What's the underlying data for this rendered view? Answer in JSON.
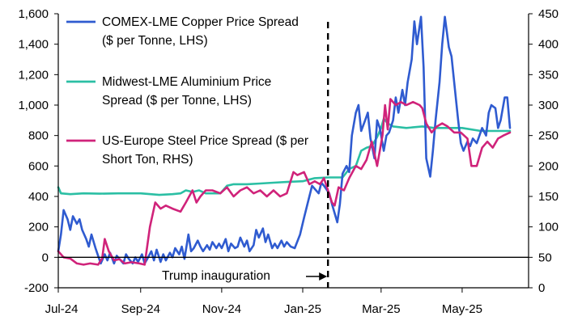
{
  "chart_data": {
    "type": "line",
    "title": "",
    "xlabel": "",
    "x_ticks": [
      "Jul-24",
      "Sep-24",
      "Nov-24",
      "Jan-25",
      "Mar-25",
      "May-25"
    ],
    "x_range": [
      "2024-07-01",
      "2025-06-20"
    ],
    "y_left": {
      "ylim": [
        -200,
        1600
      ],
      "ticks": [
        "-200",
        "0",
        "200",
        "400",
        "600",
        "800",
        "1,000",
        "1,200",
        "1,400",
        "1,600"
      ]
    },
    "y_right": {
      "ylim": [
        0,
        450
      ],
      "ticks": [
        "0",
        "50",
        "100",
        "150",
        "200",
        "250",
        "300",
        "350",
        "400",
        "450"
      ]
    },
    "grid": false,
    "legend_position": "top-left",
    "colors": {
      "copper": "#2f5bd0",
      "aluminium": "#2bbfa4",
      "steel": "#d0237a"
    },
    "annotation": {
      "label": "Trump inauguration",
      "date": "2025-01-20"
    },
    "series": [
      {
        "name": "COMEX-LME Copper Price Spread ($ per Tonne, LHS)",
        "axis": "left",
        "points": [
          [
            "2024-07-01",
            40
          ],
          [
            "2024-07-03",
            150
          ],
          [
            "2024-07-05",
            310
          ],
          [
            "2024-07-08",
            250
          ],
          [
            "2024-07-10",
            180
          ],
          [
            "2024-07-12",
            270
          ],
          [
            "2024-07-15",
            220
          ],
          [
            "2024-07-17",
            250
          ],
          [
            "2024-07-19",
            180
          ],
          [
            "2024-07-22",
            120
          ],
          [
            "2024-07-24",
            70
          ],
          [
            "2024-07-26",
            150
          ],
          [
            "2024-07-29",
            60
          ],
          [
            "2024-07-31",
            10
          ],
          [
            "2024-08-02",
            -40
          ],
          [
            "2024-08-05",
            20
          ],
          [
            "2024-08-07",
            -20
          ],
          [
            "2024-08-09",
            30
          ],
          [
            "2024-08-12",
            -40
          ],
          [
            "2024-08-14",
            10
          ],
          [
            "2024-08-16",
            -10
          ],
          [
            "2024-08-19",
            -40
          ],
          [
            "2024-08-21",
            20
          ],
          [
            "2024-08-23",
            -10
          ],
          [
            "2024-08-26",
            -40
          ],
          [
            "2024-08-28",
            0
          ],
          [
            "2024-08-30",
            -30
          ],
          [
            "2024-09-02",
            20
          ],
          [
            "2024-09-04",
            -40
          ],
          [
            "2024-09-06",
            -10
          ],
          [
            "2024-09-09",
            40
          ],
          [
            "2024-09-11",
            -20
          ],
          [
            "2024-09-13",
            50
          ],
          [
            "2024-09-16",
            -30
          ],
          [
            "2024-09-18",
            20
          ],
          [
            "2024-09-20",
            -20
          ],
          [
            "2024-09-23",
            30
          ],
          [
            "2024-09-25",
            0
          ],
          [
            "2024-09-27",
            60
          ],
          [
            "2024-09-30",
            20
          ],
          [
            "2024-10-02",
            70
          ],
          [
            "2024-10-04",
            -10
          ],
          [
            "2024-10-07",
            150
          ],
          [
            "2024-10-09",
            40
          ],
          [
            "2024-10-11",
            60
          ],
          [
            "2024-10-14",
            110
          ],
          [
            "2024-10-16",
            70
          ],
          [
            "2024-10-18",
            40
          ],
          [
            "2024-10-21",
            80
          ],
          [
            "2024-10-23",
            50
          ],
          [
            "2024-10-25",
            100
          ],
          [
            "2024-10-28",
            60
          ],
          [
            "2024-10-30",
            90
          ],
          [
            "2024-11-01",
            60
          ],
          [
            "2024-11-04",
            120
          ],
          [
            "2024-11-06",
            40
          ],
          [
            "2024-11-08",
            90
          ],
          [
            "2024-11-11",
            60
          ],
          [
            "2024-11-13",
            70
          ],
          [
            "2024-11-15",
            130
          ],
          [
            "2024-11-18",
            70
          ],
          [
            "2024-11-20",
            110
          ],
          [
            "2024-11-22",
            40
          ],
          [
            "2024-11-25",
            80
          ],
          [
            "2024-11-27",
            180
          ],
          [
            "2024-11-29",
            130
          ],
          [
            "2024-12-02",
            190
          ],
          [
            "2024-12-04",
            100
          ],
          [
            "2024-12-06",
            150
          ],
          [
            "2024-12-09",
            60
          ],
          [
            "2024-12-11",
            90
          ],
          [
            "2024-12-13",
            60
          ],
          [
            "2024-12-16",
            110
          ],
          [
            "2024-12-18",
            70
          ],
          [
            "2024-12-20",
            100
          ],
          [
            "2024-12-23",
            70
          ],
          [
            "2024-12-26",
            60
          ],
          [
            "2024-12-30",
            150
          ],
          [
            "2025-01-02",
            260
          ],
          [
            "2025-01-06",
            400
          ],
          [
            "2025-01-08",
            470
          ],
          [
            "2025-01-10",
            450
          ],
          [
            "2025-01-13",
            420
          ],
          [
            "2025-01-15",
            490
          ],
          [
            "2025-01-17",
            470
          ],
          [
            "2025-01-21",
            420
          ],
          [
            "2025-01-23",
            350
          ],
          [
            "2025-01-27",
            230
          ],
          [
            "2025-01-29",
            350
          ],
          [
            "2025-01-31",
            550
          ],
          [
            "2025-02-03",
            600
          ],
          [
            "2025-02-05",
            560
          ],
          [
            "2025-02-07",
            800
          ],
          [
            "2025-02-10",
            950
          ],
          [
            "2025-02-12",
            1000
          ],
          [
            "2025-02-14",
            830
          ],
          [
            "2025-02-17",
            900
          ],
          [
            "2025-02-19",
            950
          ],
          [
            "2025-02-21",
            780
          ],
          [
            "2025-02-24",
            650
          ],
          [
            "2025-02-26",
            900
          ],
          [
            "2025-02-28",
            850
          ],
          [
            "2025-03-03",
            700
          ],
          [
            "2025-03-05",
            800
          ],
          [
            "2025-03-07",
            820
          ],
          [
            "2025-03-10",
            900
          ],
          [
            "2025-03-12",
            1050
          ],
          [
            "2025-03-14",
            950
          ],
          [
            "2025-03-17",
            1100
          ],
          [
            "2025-03-19",
            1000
          ],
          [
            "2025-03-21",
            1150
          ],
          [
            "2025-03-24",
            1300
          ],
          [
            "2025-03-26",
            1550
          ],
          [
            "2025-03-28",
            1400
          ],
          [
            "2025-03-31",
            1580
          ],
          [
            "2025-04-02",
            1250
          ],
          [
            "2025-04-04",
            650
          ],
          [
            "2025-04-07",
            530
          ],
          [
            "2025-04-09",
            700
          ],
          [
            "2025-04-11",
            900
          ],
          [
            "2025-04-14",
            1150
          ],
          [
            "2025-04-16",
            1400
          ],
          [
            "2025-04-18",
            1580
          ],
          [
            "2025-04-21",
            1380
          ],
          [
            "2025-04-23",
            1320
          ],
          [
            "2025-04-25",
            1150
          ],
          [
            "2025-04-28",
            900
          ],
          [
            "2025-04-30",
            750
          ],
          [
            "2025-05-02",
            700
          ],
          [
            "2025-05-05",
            760
          ],
          [
            "2025-05-07",
            730
          ],
          [
            "2025-05-09",
            780
          ],
          [
            "2025-05-12",
            750
          ],
          [
            "2025-05-14",
            800
          ],
          [
            "2025-05-16",
            850
          ],
          [
            "2025-05-19",
            800
          ],
          [
            "2025-05-21",
            950
          ],
          [
            "2025-05-23",
            1000
          ],
          [
            "2025-05-26",
            980
          ],
          [
            "2025-05-28",
            850
          ],
          [
            "2025-05-30",
            900
          ],
          [
            "2025-06-02",
            1050
          ],
          [
            "2025-06-04",
            1050
          ],
          [
            "2025-06-06",
            850
          ]
        ]
      },
      {
        "name": "Midwest-LME Aluminium Price Spread ($ per Tonne, LHS)",
        "axis": "left",
        "points": [
          [
            "2024-07-01",
            460
          ],
          [
            "2024-07-03",
            420
          ],
          [
            "2024-07-10",
            415
          ],
          [
            "2024-07-20",
            420
          ],
          [
            "2024-08-01",
            418
          ],
          [
            "2024-08-15",
            420
          ],
          [
            "2024-09-01",
            420
          ],
          [
            "2024-09-15",
            410
          ],
          [
            "2024-09-25",
            415
          ],
          [
            "2024-10-01",
            420
          ],
          [
            "2024-10-05",
            440
          ],
          [
            "2024-10-10",
            430
          ],
          [
            "2024-10-15",
            440
          ],
          [
            "2024-10-20",
            420
          ],
          [
            "2024-10-31",
            420
          ],
          [
            "2024-11-05",
            470
          ],
          [
            "2024-11-10",
            480
          ],
          [
            "2024-11-20",
            480
          ],
          [
            "2024-11-30",
            485
          ],
          [
            "2024-12-10",
            490
          ],
          [
            "2024-12-20",
            495
          ],
          [
            "2025-01-01",
            500
          ],
          [
            "2025-01-10",
            520
          ],
          [
            "2025-01-20",
            525
          ],
          [
            "2025-01-31",
            525
          ],
          [
            "2025-02-05",
            580
          ],
          [
            "2025-02-10",
            600
          ],
          [
            "2025-02-14",
            700
          ],
          [
            "2025-02-18",
            720
          ],
          [
            "2025-02-22",
            730
          ],
          [
            "2025-02-26",
            790
          ],
          [
            "2025-03-01",
            850
          ],
          [
            "2025-03-03",
            910
          ],
          [
            "2025-03-06",
            880
          ],
          [
            "2025-03-10",
            860
          ],
          [
            "2025-03-20",
            850
          ],
          [
            "2025-04-01",
            860
          ],
          [
            "2025-04-10",
            850
          ],
          [
            "2025-04-20",
            850
          ],
          [
            "2025-05-01",
            850
          ],
          [
            "2025-05-15",
            830
          ],
          [
            "2025-06-01",
            830
          ],
          [
            "2025-06-06",
            830
          ]
        ]
      },
      {
        "name": "US-Europe Steel Price Spread ($ per Short Ton, RHS)",
        "axis": "right",
        "points": [
          [
            "2024-07-01",
            60
          ],
          [
            "2024-07-05",
            50
          ],
          [
            "2024-07-10",
            48
          ],
          [
            "2024-07-15",
            40
          ],
          [
            "2024-07-20",
            38
          ],
          [
            "2024-07-25",
            40
          ],
          [
            "2024-07-31",
            38
          ],
          [
            "2024-08-03",
            48
          ],
          [
            "2024-08-05",
            80
          ],
          [
            "2024-08-08",
            60
          ],
          [
            "2024-08-12",
            45
          ],
          [
            "2024-08-16",
            47
          ],
          [
            "2024-08-20",
            40
          ],
          [
            "2024-08-25",
            42
          ],
          [
            "2024-08-31",
            40
          ],
          [
            "2024-09-04",
            38
          ],
          [
            "2024-09-08",
            100
          ],
          [
            "2024-09-12",
            140
          ],
          [
            "2024-09-16",
            130
          ],
          [
            "2024-09-20",
            135
          ],
          [
            "2024-09-25",
            130
          ],
          [
            "2024-10-01",
            125
          ],
          [
            "2024-10-05",
            140
          ],
          [
            "2024-10-10",
            160
          ],
          [
            "2024-10-13",
            140
          ],
          [
            "2024-10-16",
            150
          ],
          [
            "2024-10-20",
            160
          ],
          [
            "2024-10-25",
            160
          ],
          [
            "2024-10-31",
            155
          ],
          [
            "2024-11-05",
            165
          ],
          [
            "2024-11-10",
            150
          ],
          [
            "2024-11-15",
            160
          ],
          [
            "2024-11-20",
            165
          ],
          [
            "2024-11-25",
            155
          ],
          [
            "2024-11-30",
            160
          ],
          [
            "2024-12-05",
            150
          ],
          [
            "2024-12-10",
            160
          ],
          [
            "2024-12-15",
            150
          ],
          [
            "2024-12-20",
            155
          ],
          [
            "2024-12-25",
            190
          ],
          [
            "2024-12-28",
            185
          ],
          [
            "2025-01-02",
            190
          ],
          [
            "2025-01-06",
            170
          ],
          [
            "2025-01-10",
            175
          ],
          [
            "2025-01-14",
            170
          ],
          [
            "2025-01-17",
            180
          ],
          [
            "2025-01-20",
            160
          ],
          [
            "2025-01-23",
            140
          ],
          [
            "2025-01-25",
            135
          ],
          [
            "2025-01-28",
            165
          ],
          [
            "2025-02-01",
            160
          ],
          [
            "2025-02-05",
            180
          ],
          [
            "2025-02-10",
            200
          ],
          [
            "2025-02-14",
            195
          ],
          [
            "2025-02-18",
            210
          ],
          [
            "2025-02-22",
            240
          ],
          [
            "2025-02-26",
            200
          ],
          [
            "2025-03-02",
            250
          ],
          [
            "2025-03-04",
            300
          ],
          [
            "2025-03-06",
            260
          ],
          [
            "2025-03-08",
            310
          ],
          [
            "2025-03-12",
            300
          ],
          [
            "2025-03-16",
            305
          ],
          [
            "2025-03-20",
            300
          ],
          [
            "2025-03-25",
            305
          ],
          [
            "2025-03-30",
            300
          ],
          [
            "2025-04-01",
            295
          ],
          [
            "2025-04-04",
            270
          ],
          [
            "2025-04-08",
            255
          ],
          [
            "2025-04-12",
            265
          ],
          [
            "2025-04-16",
            270
          ],
          [
            "2025-04-20",
            265
          ],
          [
            "2025-04-25",
            255
          ],
          [
            "2025-04-30",
            255
          ],
          [
            "2025-05-05",
            245
          ],
          [
            "2025-05-08",
            200
          ],
          [
            "2025-05-12",
            200
          ],
          [
            "2025-05-16",
            230
          ],
          [
            "2025-05-20",
            240
          ],
          [
            "2025-05-24",
            230
          ],
          [
            "2025-05-28",
            245
          ],
          [
            "2025-06-01",
            250
          ],
          [
            "2025-06-06",
            255
          ]
        ]
      }
    ]
  }
}
